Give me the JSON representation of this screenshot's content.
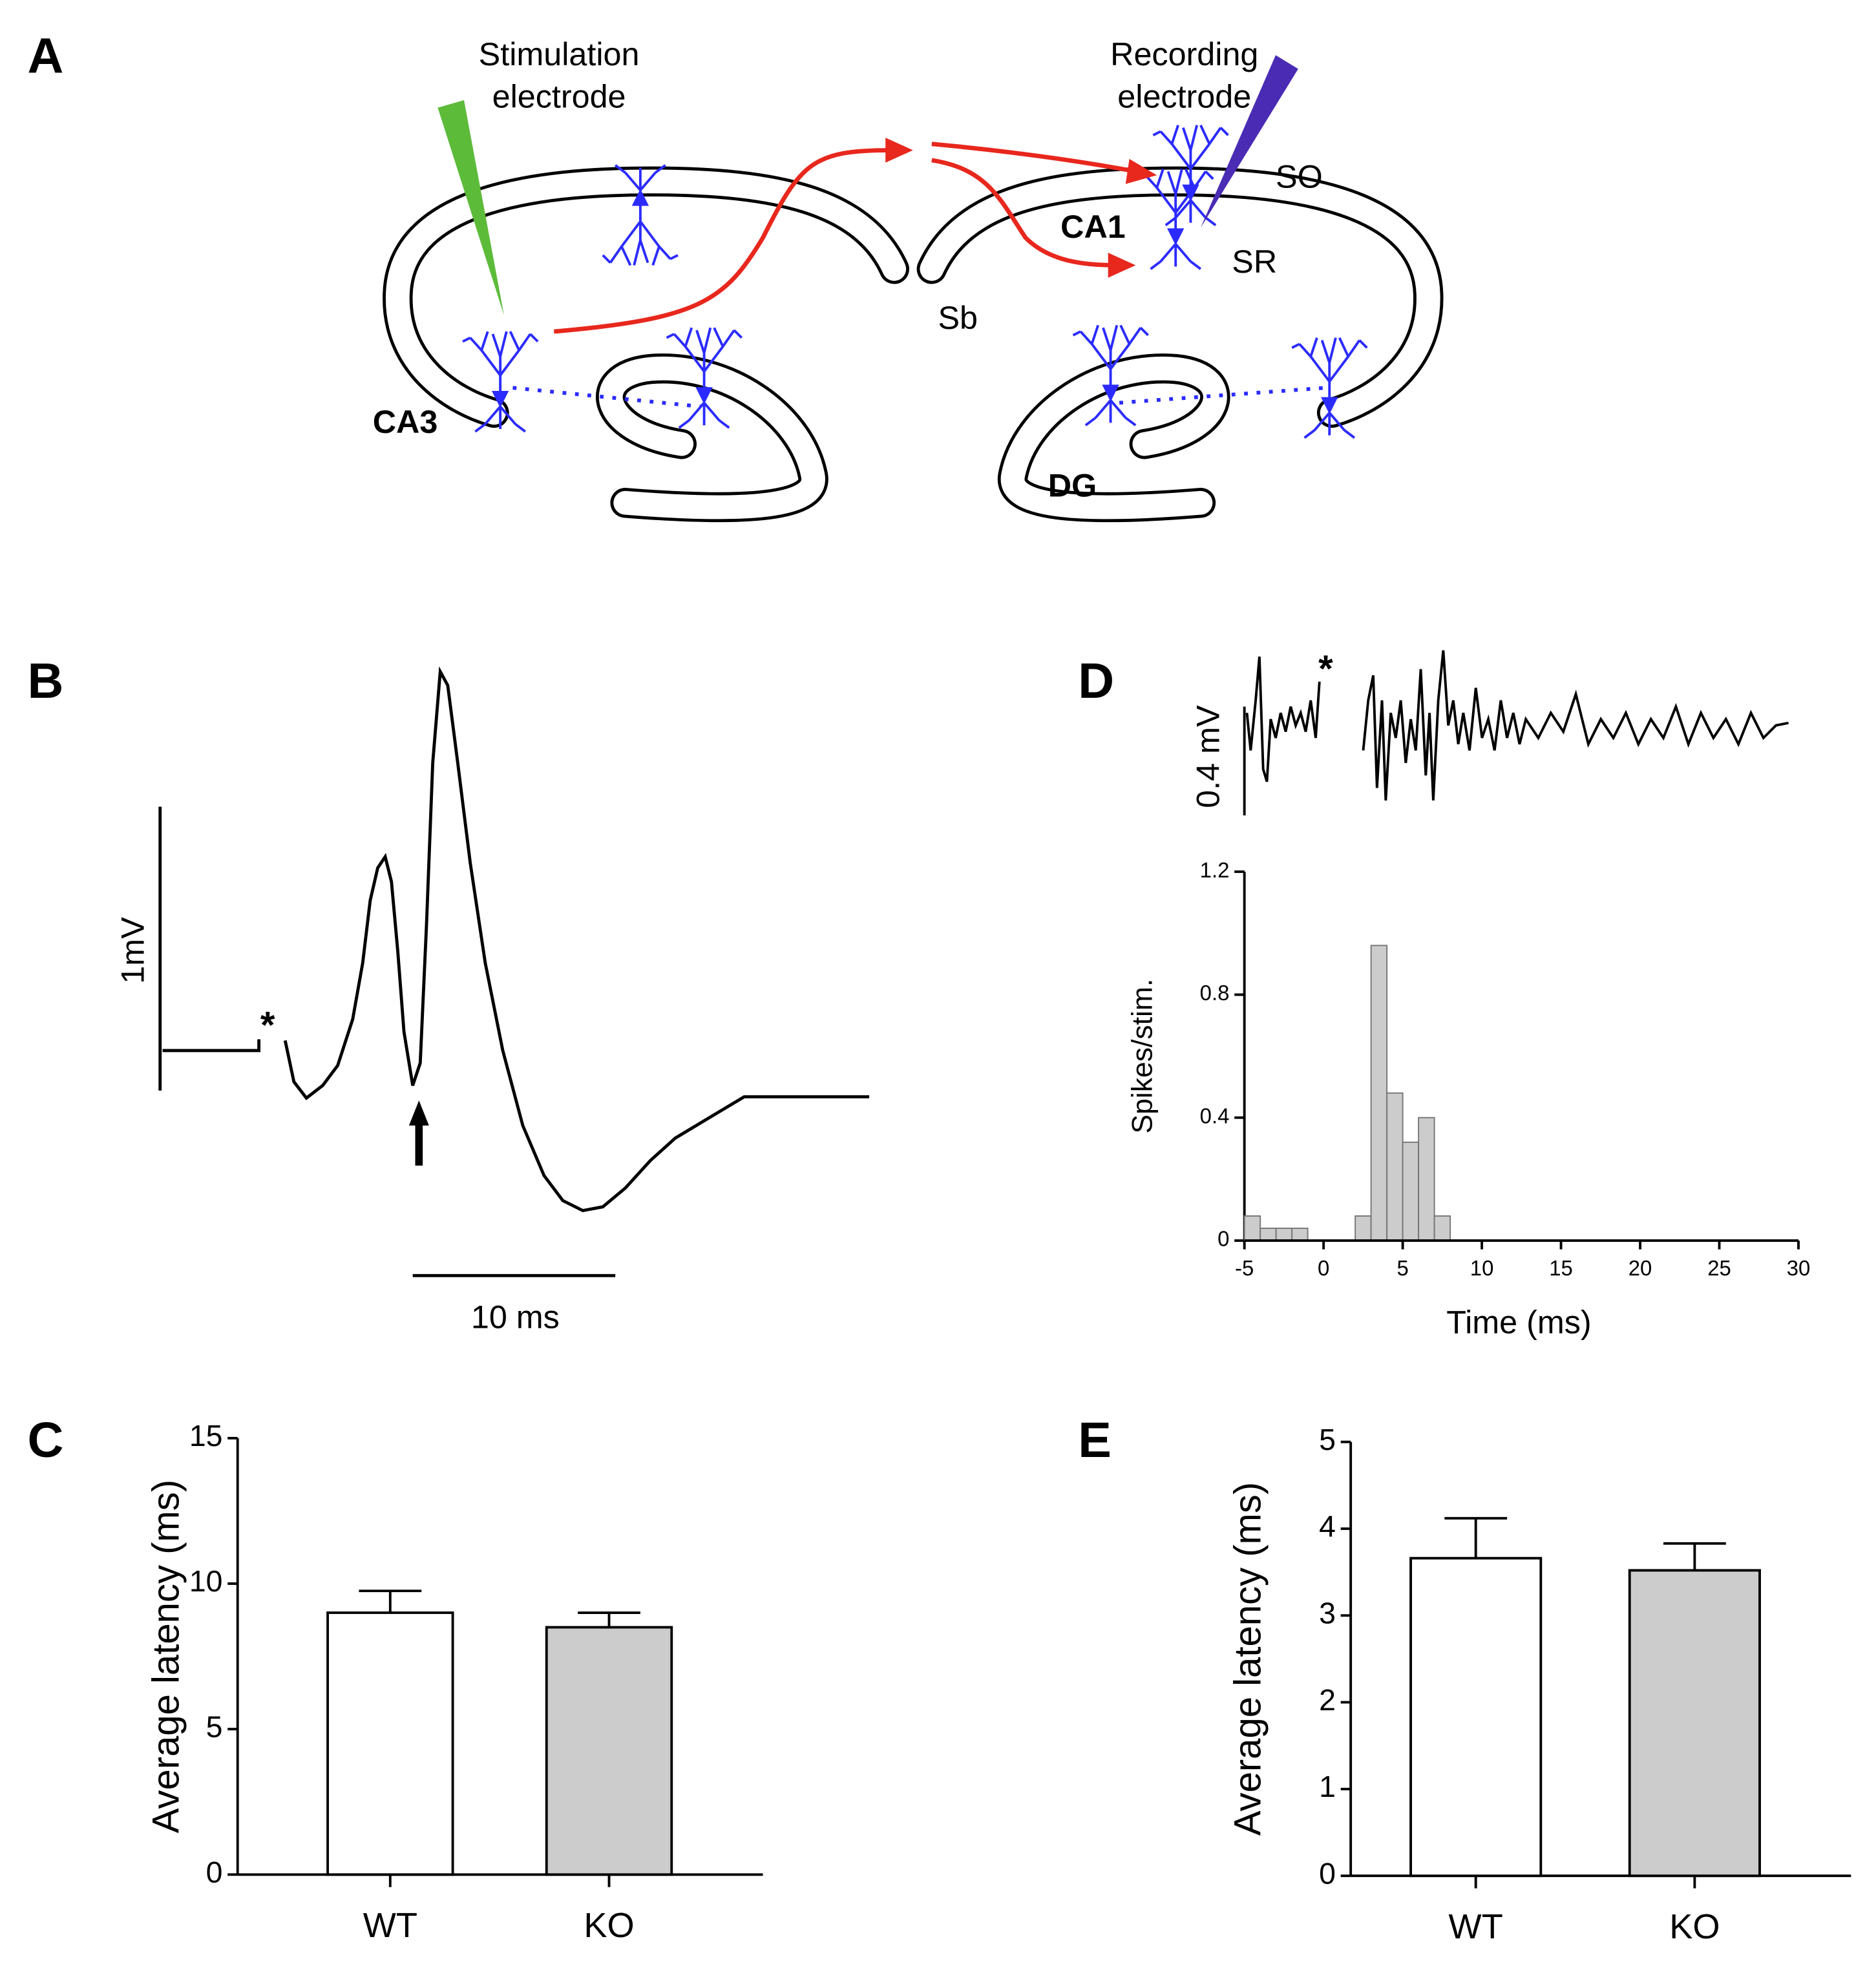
{
  "panel_labels": [
    "A",
    "B",
    "C",
    "D",
    "E"
  ],
  "diagram": {
    "stimulation_electrode": [
      "Stimulation",
      "electrode"
    ],
    "recording_electrode": [
      "Recording",
      "electrode"
    ],
    "labels": [
      "SO",
      "CA1",
      "SR",
      "Sb",
      "CA3",
      "DG"
    ]
  },
  "trace_b": {
    "scale_voltage": "1mV",
    "scale_time": "10 ms",
    "stim_marker": "*"
  },
  "trace_d": {
    "scale_voltage": "0.4 mV",
    "stim_marker": "*"
  },
  "chart_data": [
    {
      "type": "histogram",
      "ylabel": "Spikes/stim.",
      "xlabel": "Time (ms)",
      "bins": [
        -5,
        -4,
        -3,
        -2,
        -1,
        0,
        1,
        2,
        3,
        4,
        5,
        6,
        7,
        8
      ],
      "counts": [
        0.08,
        0.04,
        0.04,
        0.04,
        0,
        0,
        0,
        0.08,
        0.96,
        0.48,
        0.32,
        0.4,
        0.08
      ],
      "color": "#cccccc",
      "xlim": [
        -5,
        30
      ],
      "xticks": [
        -5,
        0,
        5,
        10,
        15,
        20,
        25,
        30
      ],
      "ylim": [
        0,
        1.2
      ],
      "yticks": [
        0,
        0.4,
        0.8,
        1.2
      ]
    },
    {
      "type": "bar",
      "ylabel": "Average latency (ms)",
      "categories": [
        "WT",
        "KO"
      ],
      "values": [
        9.0,
        8.5
      ],
      "errors": [
        0.75,
        0.5
      ],
      "colors": [
        "#ffffff",
        "#cccccc"
      ],
      "ylim": [
        0,
        15
      ],
      "yticks": [
        0,
        5,
        10,
        15
      ]
    },
    {
      "type": "bar",
      "ylabel": "Average latency (ms)",
      "categories": [
        "WT",
        "KO"
      ],
      "values": [
        3.66,
        3.52
      ],
      "errors": [
        0.46,
        0.31
      ],
      "colors": [
        "#ffffff",
        "#cccccc"
      ],
      "ylim": [
        0,
        5
      ],
      "yticks": [
        0,
        1,
        2,
        3,
        4,
        5
      ]
    }
  ]
}
